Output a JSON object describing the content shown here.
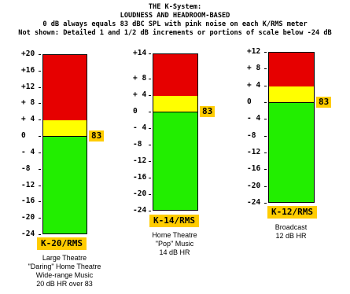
{
  "header": {
    "line1": "THE K-System:",
    "line2": "LOUDNESS AND HEADROOM-BASED",
    "line3": "0 dB always equals 83 dBC SPL with pink noise on each K/RMS meter",
    "line4": "Not shown: Detailed 1 and 1/2 dB increments or portions of scale below -24 dB"
  },
  "meters": [
    {
      "name": "K-20/RMS",
      "top_db": 20,
      "headroom_db": 20,
      "ticks": [
        "+20",
        "+16",
        "+12",
        "+ 8",
        "+ 4",
        "0",
        "- 4",
        "-8",
        "-12",
        "-16",
        "-20",
        "-24"
      ],
      "ref_label": "83",
      "description": [
        "Large Theatre",
        "\"Daring\" Home Theatre",
        "Wide-range Music",
        "20 dB HR over 83"
      ]
    },
    {
      "name": "K-14/RMS",
      "top_db": 14,
      "headroom_db": 14,
      "ticks": [
        "+14",
        "+ 8",
        "+ 4",
        "0",
        "- 4",
        "-8",
        "-12",
        "-16",
        "-20",
        "-24"
      ],
      "ref_label": "83",
      "description": [
        "Home Theatre",
        "\"Pop\" Music",
        "14 dB HR"
      ]
    },
    {
      "name": "K-12/RMS",
      "top_db": 12,
      "headroom_db": 12,
      "ticks": [
        "+12",
        "+ 8",
        "+ 4",
        "0",
        "- 4",
        "-8",
        "-12",
        "-16",
        "-20",
        "-24"
      ],
      "ref_label": "83",
      "description": [
        "Broadcast",
        "12 dB HR"
      ]
    }
  ],
  "colors": {
    "red": "#e60000",
    "yellow": "#ffff00",
    "green": "#22ee00",
    "label_bg": "#ffcc00"
  }
}
